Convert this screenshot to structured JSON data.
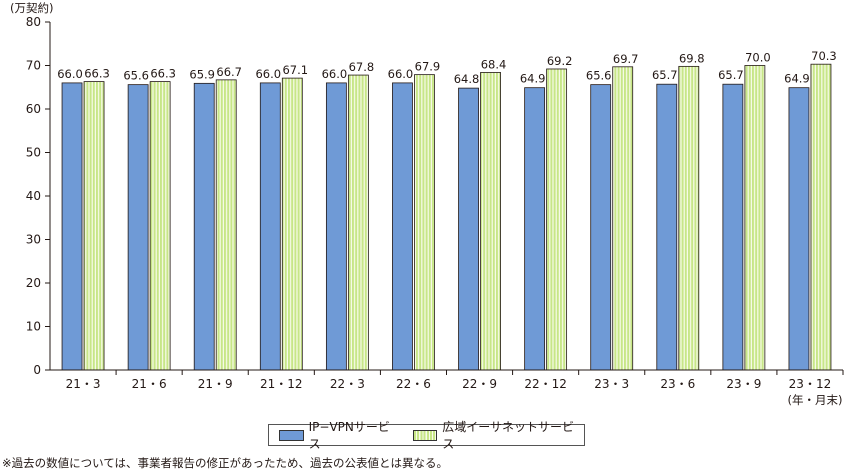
{
  "chart_data": {
    "type": "bar",
    "y_unit": "(万契約)",
    "x_unit": "(年・月末)",
    "categories": [
      "21・3",
      "21・6",
      "21・9",
      "21・12",
      "22・3",
      "22・6",
      "22・9",
      "22・12",
      "23・3",
      "23・6",
      "23・9",
      "23・12"
    ],
    "ylim": [
      0,
      80
    ],
    "yticks": [
      0,
      10,
      20,
      30,
      40,
      50,
      60,
      70,
      80
    ],
    "grid": false,
    "legend_position": "bottom-center",
    "series": [
      {
        "name": "IP−VPNサービス",
        "color": "#6f9ad6",
        "values": [
          66.0,
          65.6,
          65.9,
          66.0,
          66.0,
          66.0,
          64.8,
          64.9,
          65.6,
          65.7,
          65.7,
          64.9
        ],
        "labels": [
          "66.0",
          "65.6",
          "65.9",
          "66.0",
          "66.0",
          "66.0",
          "64.8",
          "64.9",
          "65.6",
          "65.7",
          "65.7",
          "64.9"
        ]
      },
      {
        "name": "広域イーサネットサービス",
        "color": "#c7e687",
        "values": [
          66.3,
          66.3,
          66.7,
          67.1,
          67.8,
          67.9,
          68.4,
          69.2,
          69.7,
          69.8,
          70.0,
          70.3
        ],
        "labels": [
          "66.3",
          "66.3",
          "66.7",
          "67.1",
          "67.8",
          "67.9",
          "68.4",
          "69.2",
          "69.7",
          "69.8",
          "70.0",
          "70.3"
        ]
      }
    ]
  },
  "footnote": "※過去の数値については、事業者報告の修正があったため、過去の公表値とは異なる。"
}
